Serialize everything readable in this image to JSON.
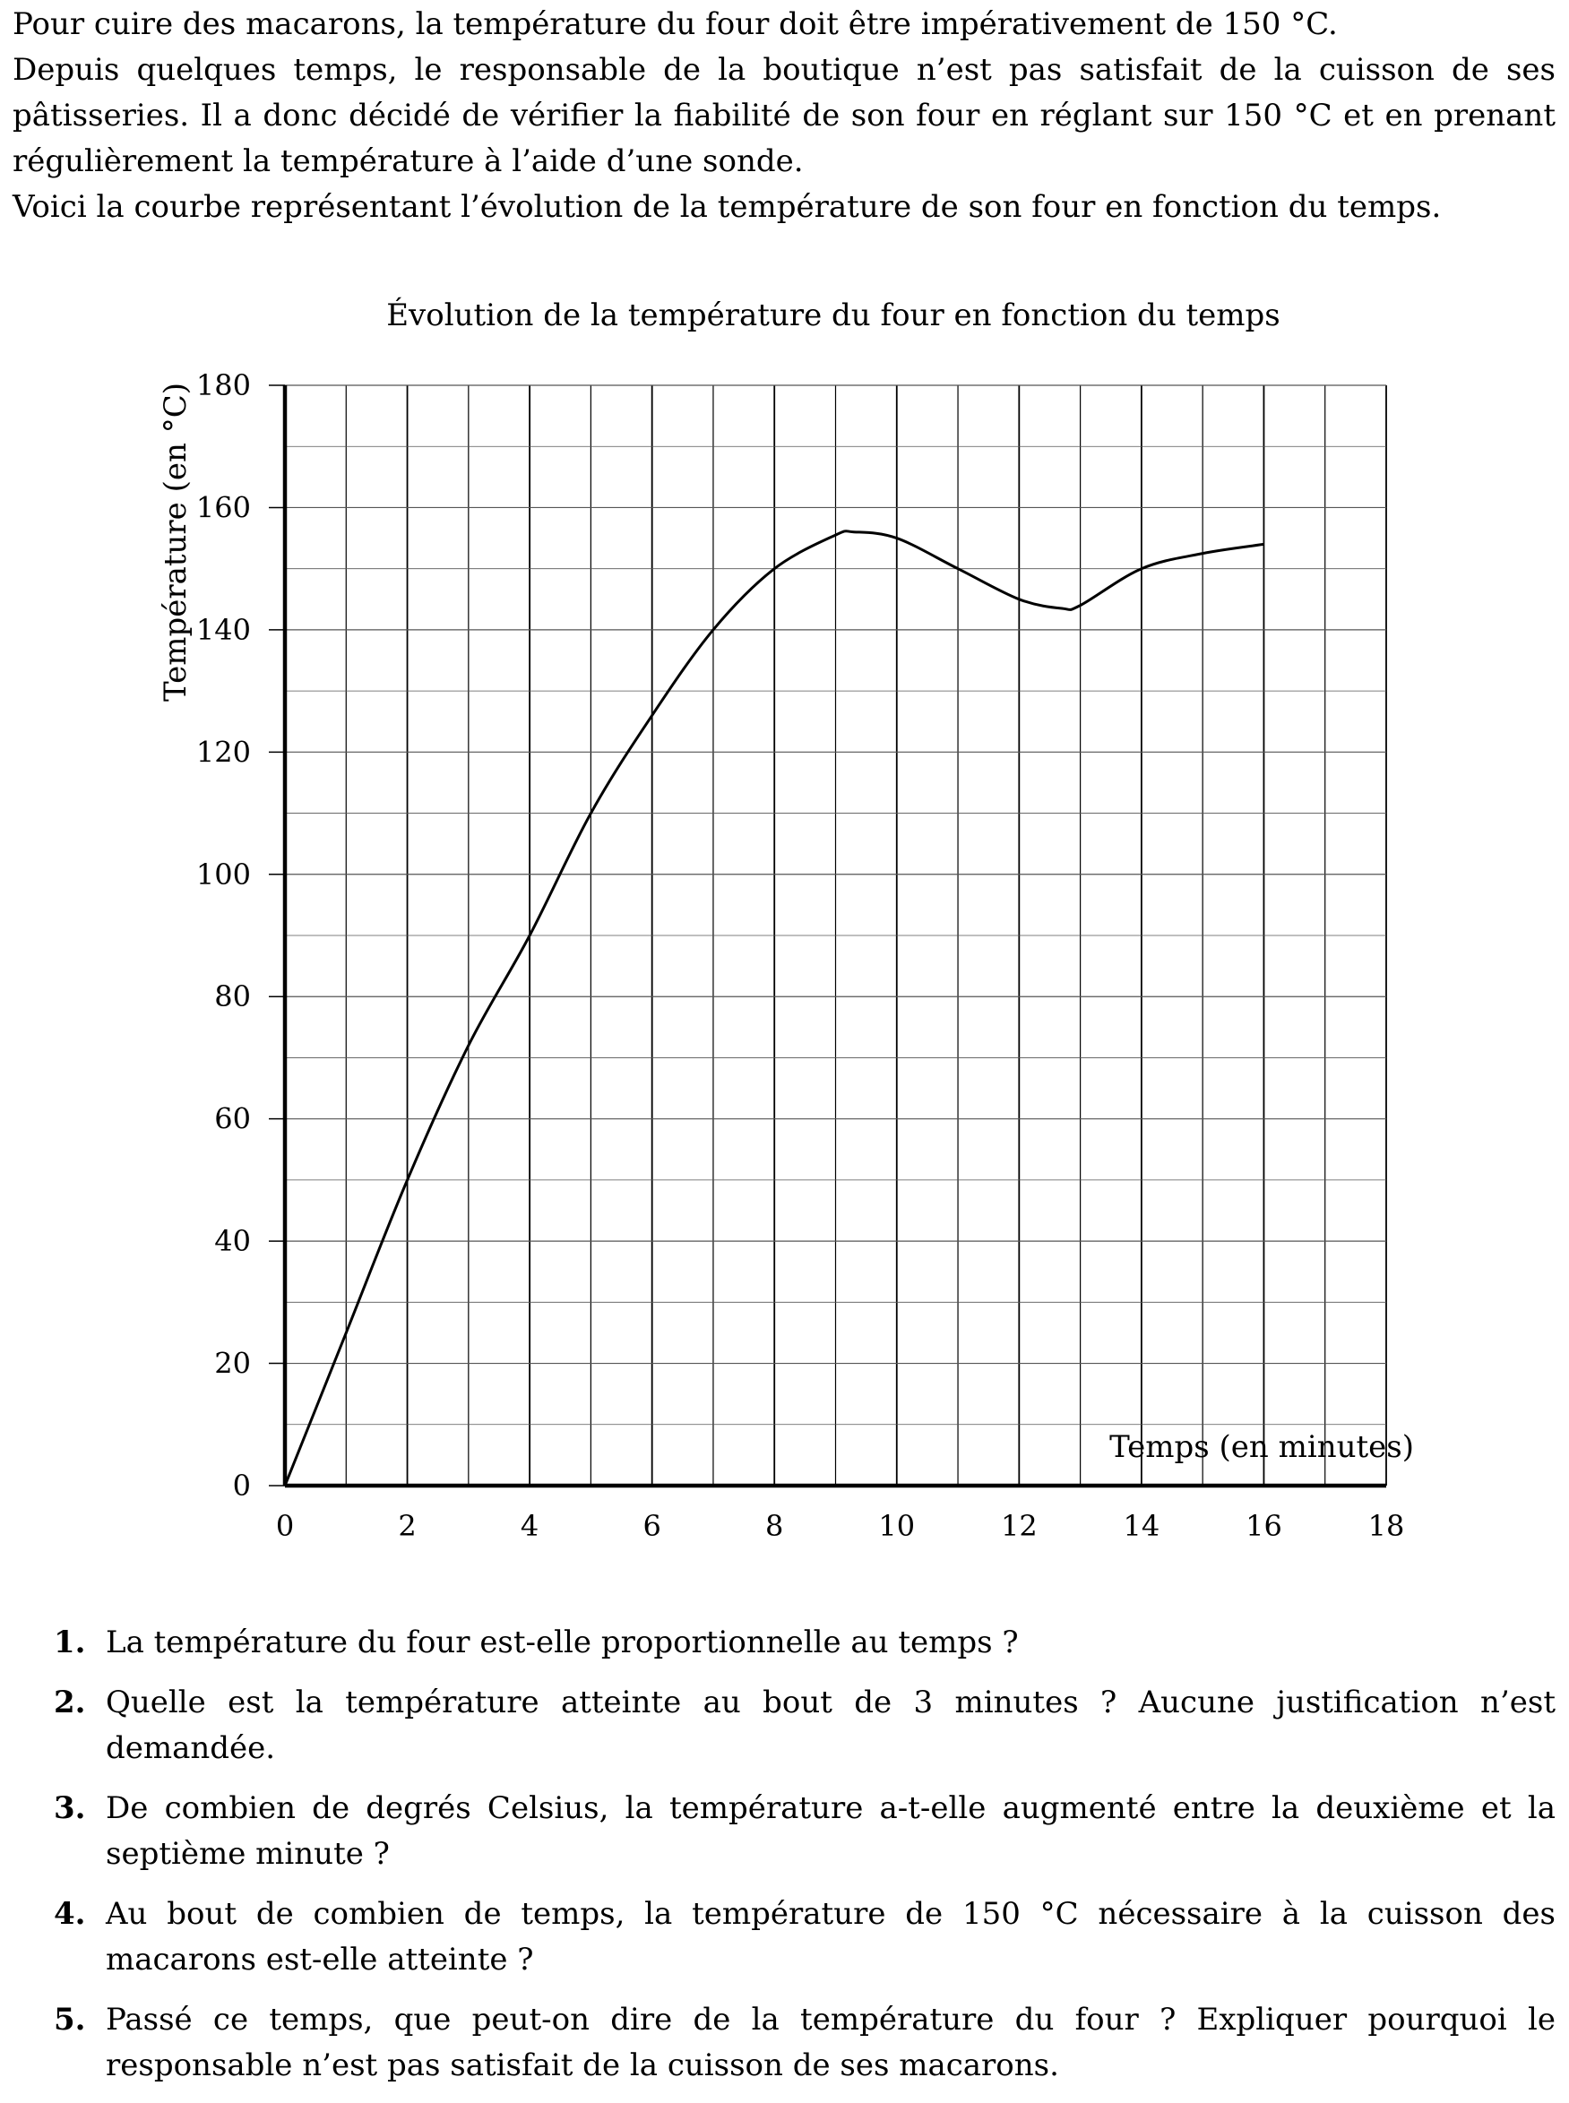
{
  "intro": {
    "p1": "Pour cuire des macarons, la température du four doit être impérativement de 150 °C.",
    "p2": "Depuis quelques temps, le responsable de la boutique n’est pas satisfait de la cuisson de ses pâtisseries. Il a donc décidé de vérifier la fiabilité de son four en réglant sur 150 °C et en prenant régulièrement la température à l’aide d’une sonde.",
    "p3": "Voici la courbe représentant l’évolution de la température de son four en fonction du temps."
  },
  "chart_data": {
    "type": "line",
    "title": "Évolution de la température du four en fonction du temps",
    "xlabel": "Temps (en minutes)",
    "ylabel": "Température (en °C)",
    "xlim": [
      0,
      18
    ],
    "ylim": [
      0,
      180
    ],
    "xticks": [
      0,
      2,
      4,
      6,
      8,
      10,
      12,
      14,
      16,
      18
    ],
    "yticks": [
      0,
      20,
      40,
      60,
      80,
      100,
      120,
      140,
      160,
      180
    ],
    "x_grid_step": 1,
    "y_grid_step": 10,
    "grid": true,
    "series": [
      {
        "x": [
          0,
          1,
          2,
          3,
          4,
          5,
          6,
          7,
          8,
          9,
          9.3,
          10,
          11,
          12,
          12.7,
          13,
          14,
          15,
          16
        ],
        "values": [
          0,
          25,
          50,
          72,
          90,
          110,
          126,
          140,
          150,
          155.5,
          156,
          155,
          150,
          145,
          143.5,
          144,
          150,
          152.5,
          154
        ]
      }
    ]
  },
  "questions": [
    {
      "num": "1.",
      "text": "La température du four est-elle proportionnelle au temps ?"
    },
    {
      "num": "2.",
      "text": "Quelle est la température atteinte au bout de 3 minutes ? Aucune justification n’est demandée."
    },
    {
      "num": "3.",
      "text": "De combien de degrés Celsius, la température a-t-elle augmenté entre la deuxième et la septième minute ?"
    },
    {
      "num": "4.",
      "text": "Au bout de combien de temps, la température de 150 °C nécessaire à la cuisson des macarons est-elle atteinte ?"
    },
    {
      "num": "5.",
      "text": "Passé ce temps, que peut-on dire de la température du four ? Expliquer pourquoi le responsable n’est pas satisfait de la cuisson de ses macarons."
    }
  ]
}
